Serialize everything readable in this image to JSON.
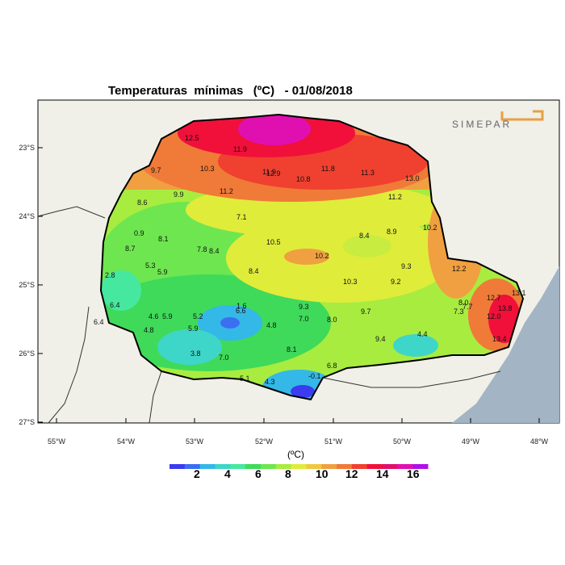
{
  "title": "Temperaturas  mínimas   (ºC)   - 01/08/2018",
  "logo_text": "SIMEPAR",
  "x_ticks": [
    "55°W",
    "54°W",
    "53°W",
    "52°W",
    "51°W",
    "50°W",
    "49°W",
    "48°W"
  ],
  "y_ticks": [
    "23°S",
    "24°S",
    "25°S",
    "26°S",
    "27°S"
  ],
  "colorbar": {
    "unit": "(ºC)",
    "labels": [
      "2",
      "4",
      "6",
      "8",
      "10",
      "12",
      "14",
      "16"
    ],
    "colors": [
      "#3b3bf0",
      "#3c6ef2",
      "#33b8e8",
      "#3ed6c8",
      "#46e8a0",
      "#3fda5a",
      "#6ee650",
      "#a8ec40",
      "#e0ec3a",
      "#f0c840",
      "#f0a040",
      "#f07a38",
      "#f04030",
      "#f0103a",
      "#e0106a",
      "#e010b0",
      "#b010e8"
    ]
  },
  "stations": [
    {
      "v": "12.5"
    },
    {
      "v": "11.9"
    },
    {
      "v": "10.3"
    },
    {
      "v": "9.7"
    },
    {
      "v": "11.9"
    },
    {
      "v": "12.9"
    },
    {
      "v": "10.8"
    },
    {
      "v": "11.8"
    },
    {
      "v": "11.3"
    },
    {
      "v": "13.0"
    },
    {
      "v": "11.2"
    },
    {
      "v": "9.9"
    },
    {
      "v": "11.2"
    },
    {
      "v": "8.6"
    },
    {
      "v": "7.1"
    },
    {
      "v": "10.2"
    },
    {
      "v": "8.9"
    },
    {
      "v": "8.4"
    },
    {
      "v": "0.9"
    },
    {
      "v": "8.1"
    },
    {
      "v": "8.7"
    },
    {
      "v": "10.5"
    },
    {
      "v": "7.8"
    },
    {
      "v": "8.4"
    },
    {
      "v": "10.2"
    },
    {
      "v": "5.3"
    },
    {
      "v": "9.3"
    },
    {
      "v": "5.9"
    },
    {
      "v": "12.2"
    },
    {
      "v": "2.8"
    },
    {
      "v": "8.4"
    },
    {
      "v": "10.3"
    },
    {
      "v": "9.2"
    },
    {
      "v": "6.4"
    },
    {
      "v": "12.7"
    },
    {
      "v": "8.0"
    },
    {
      "v": "1.6"
    },
    {
      "v": "6.6"
    },
    {
      "v": "9.3"
    },
    {
      "v": "4.6"
    },
    {
      "v": "5.9"
    },
    {
      "v": "5.2"
    },
    {
      "v": "7.3"
    },
    {
      "v": "7.7"
    },
    {
      "v": "9.7"
    },
    {
      "v": "13.1"
    },
    {
      "v": "12.0"
    },
    {
      "v": "13.8"
    },
    {
      "v": "6.4"
    },
    {
      "v": "7.0"
    },
    {
      "v": "8.0"
    },
    {
      "v": "4.8"
    },
    {
      "v": "5.9"
    },
    {
      "v": "4.8"
    },
    {
      "v": "9.4"
    },
    {
      "v": "4.4"
    },
    {
      "v": "13.4"
    },
    {
      "v": "3.8"
    },
    {
      "v": "7.0"
    },
    {
      "v": "8.1"
    },
    {
      "v": "6.8"
    },
    {
      "v": "5.1"
    },
    {
      "v": "4.3"
    },
    {
      "v": "-0.1"
    }
  ]
}
